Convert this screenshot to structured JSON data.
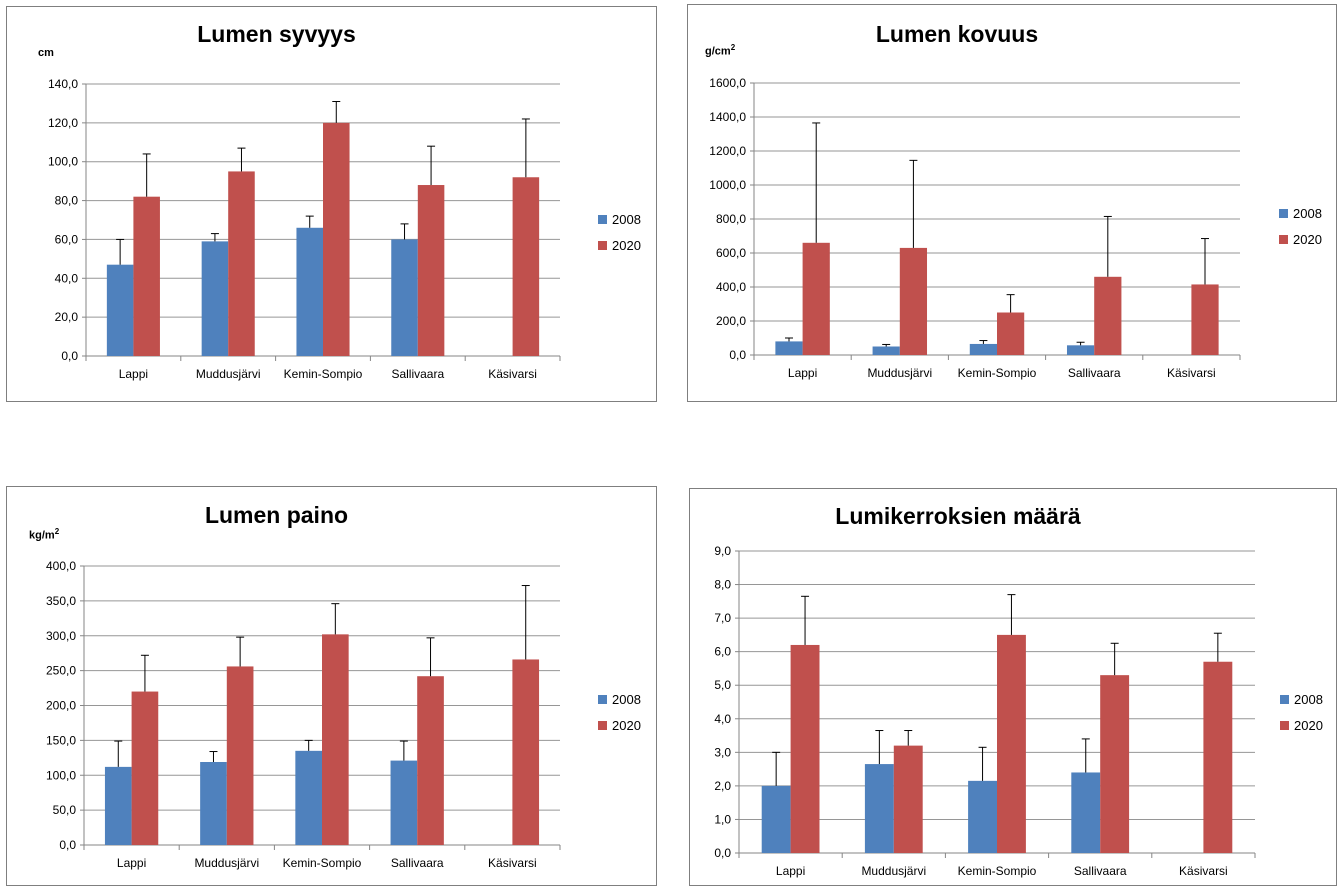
{
  "colors": {
    "s2008": "#4f81bd",
    "s2020": "#c0504d",
    "grid": "#969696",
    "axis": "#868686"
  },
  "chart_data": [
    {
      "type": "bar",
      "title": "Lumen syvyys",
      "ylabel": "cm",
      "categories": [
        "Lappi",
        "Muddusjärvi",
        "Kemin-Sompio",
        "Sallivaara",
        "Käsivarsi"
      ],
      "ylim": [
        0,
        140
      ],
      "yticks": [
        "0,0",
        "20,0",
        "40,0",
        "60,0",
        "80,0",
        "100,0",
        "120,0",
        "140,0"
      ],
      "grid": true,
      "legend_position": "right",
      "series": [
        {
          "name": "2008",
          "values": [
            47,
            59,
            66,
            60,
            null
          ],
          "errors": [
            13,
            4,
            6,
            8,
            null
          ]
        },
        {
          "name": "2020",
          "values": [
            82,
            95,
            120,
            88,
            92
          ],
          "errors": [
            22,
            12,
            11,
            20,
            30
          ]
        }
      ]
    },
    {
      "type": "bar",
      "title": "Lumen kovuus",
      "ylabel": "g/cm",
      "ylabel_sup": "2",
      "categories": [
        "Lappi",
        "Muddusjärvi",
        "Kemin-Sompio",
        "Sallivaara",
        "Käsivarsi"
      ],
      "ylim": [
        0,
        1600
      ],
      "yticks": [
        "0,0",
        "200,0",
        "400,0",
        "600,0",
        "800,0",
        "1000,0",
        "1200,0",
        "1400,0",
        "1600,0"
      ],
      "grid": true,
      "legend_position": "right",
      "series": [
        {
          "name": "2008",
          "values": [
            80,
            50,
            65,
            57,
            null
          ],
          "errors": [
            20,
            12,
            20,
            18,
            null
          ]
        },
        {
          "name": "2020",
          "values": [
            660,
            630,
            250,
            460,
            415
          ],
          "errors": [
            705,
            515,
            105,
            355,
            270
          ]
        }
      ]
    },
    {
      "type": "bar",
      "title": "Lumen paino",
      "ylabel": "kg/m",
      "ylabel_sup": "2",
      "categories": [
        "Lappi",
        "Muddusjärvi",
        "Kemin-Sompio",
        "Sallivaara",
        "Käsivarsi"
      ],
      "ylim": [
        0,
        400
      ],
      "yticks": [
        "0,0",
        "50,0",
        "100,0",
        "150,0",
        "200,0",
        "250,0",
        "300,0",
        "350,0",
        "400,0"
      ],
      "grid": true,
      "legend_position": "right",
      "series": [
        {
          "name": "2008",
          "values": [
            112,
            119,
            135,
            121,
            null
          ],
          "errors": [
            37,
            15,
            15,
            28,
            null
          ]
        },
        {
          "name": "2020",
          "values": [
            220,
            256,
            302,
            242,
            266
          ],
          "errors": [
            52,
            42,
            44,
            55,
            106
          ]
        }
      ]
    },
    {
      "type": "bar",
      "title": "Lumikerroksien määrä",
      "ylabel": "",
      "categories": [
        "Lappi",
        "Muddusjärvi",
        "Kemin-Sompio",
        "Sallivaara",
        "Käsivarsi"
      ],
      "ylim": [
        0,
        9
      ],
      "yticks": [
        "0,0",
        "1,0",
        "2,0",
        "3,0",
        "4,0",
        "5,0",
        "6,0",
        "7,0",
        "8,0",
        "9,0"
      ],
      "grid": true,
      "legend_position": "right",
      "series": [
        {
          "name": "2008",
          "values": [
            2.0,
            2.65,
            2.15,
            2.4,
            null
          ],
          "errors": [
            1.0,
            1.0,
            1.0,
            1.0,
            null
          ]
        },
        {
          "name": "2020",
          "values": [
            6.2,
            3.2,
            6.5,
            5.3,
            5.7
          ],
          "errors": [
            1.45,
            0.45,
            1.2,
            0.95,
            0.85
          ]
        }
      ]
    }
  ]
}
